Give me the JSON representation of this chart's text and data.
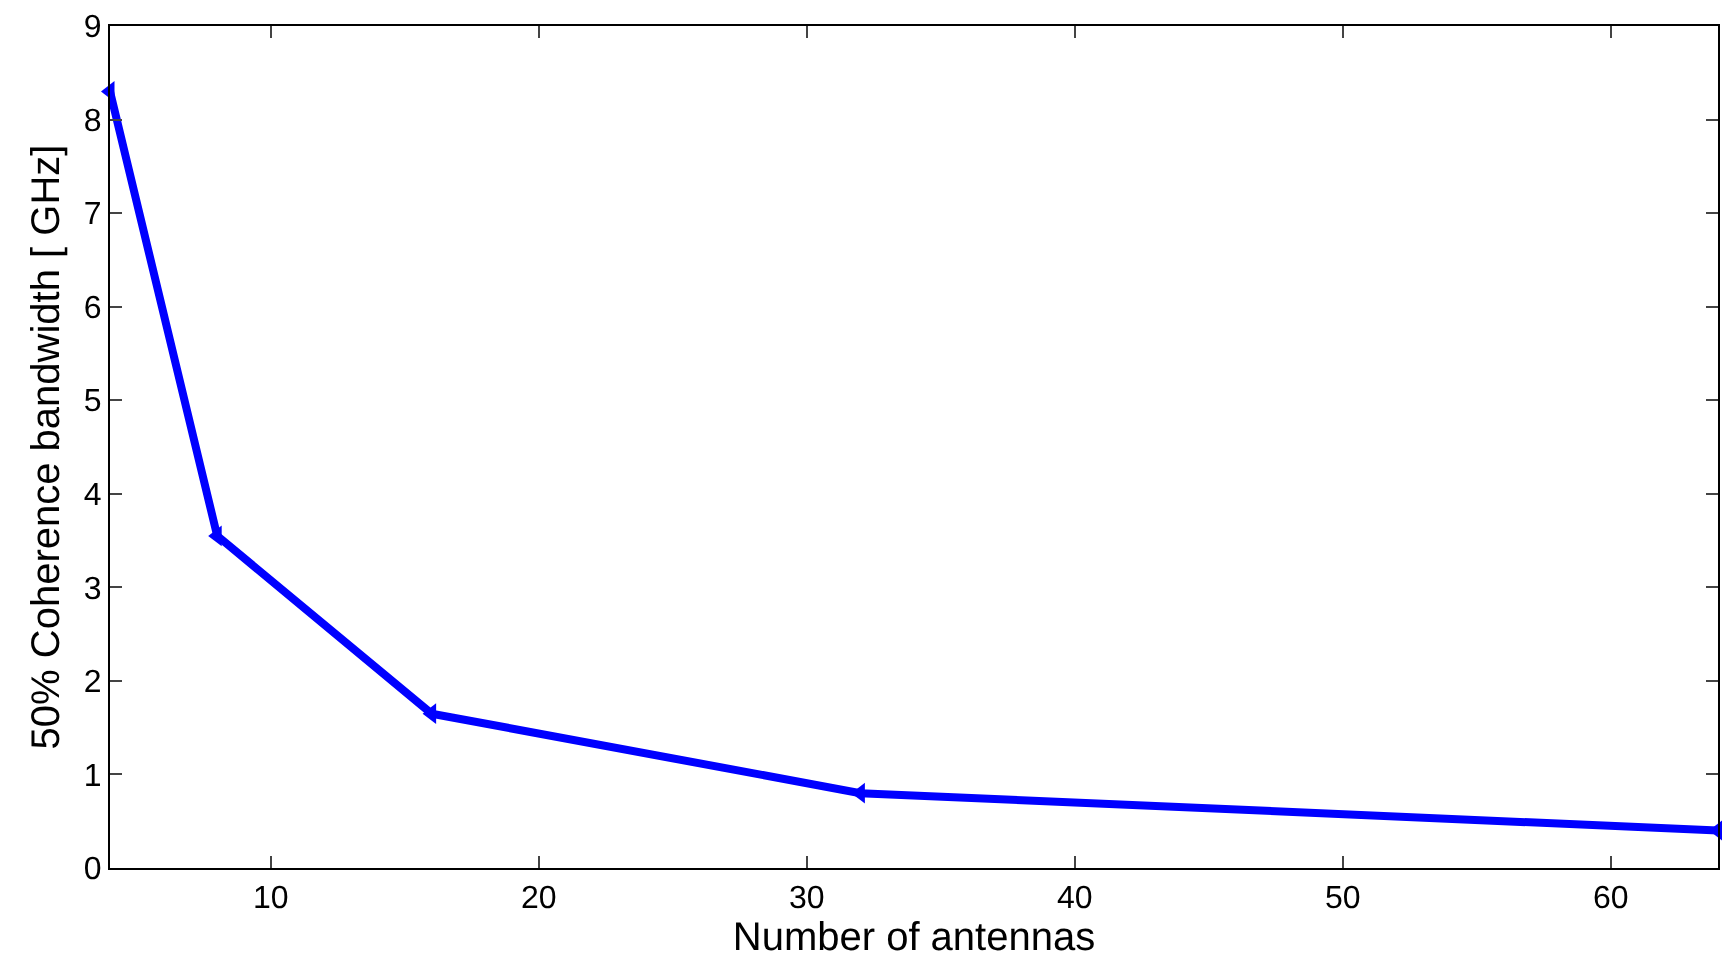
{
  "chart_data": {
    "type": "line",
    "xlabel": "Number of antennas",
    "ylabel": "50% Coherence bandwidth [ GHz]",
    "x": [
      4,
      8,
      16,
      32,
      64
    ],
    "series": [
      {
        "color": "#0000ff",
        "values": [
          8.3,
          3.55,
          1.65,
          0.8,
          0.4
        ]
      }
    ],
    "xlim": [
      4,
      64
    ],
    "xticks": [
      10,
      20,
      30,
      40,
      50,
      60
    ],
    "ylim": [
      0,
      9
    ],
    "yticks": [
      0,
      1,
      2,
      3,
      4,
      5,
      6,
      7,
      8,
      9
    ],
    "legend": false,
    "marker": "triangle",
    "line_style": "solid"
  }
}
